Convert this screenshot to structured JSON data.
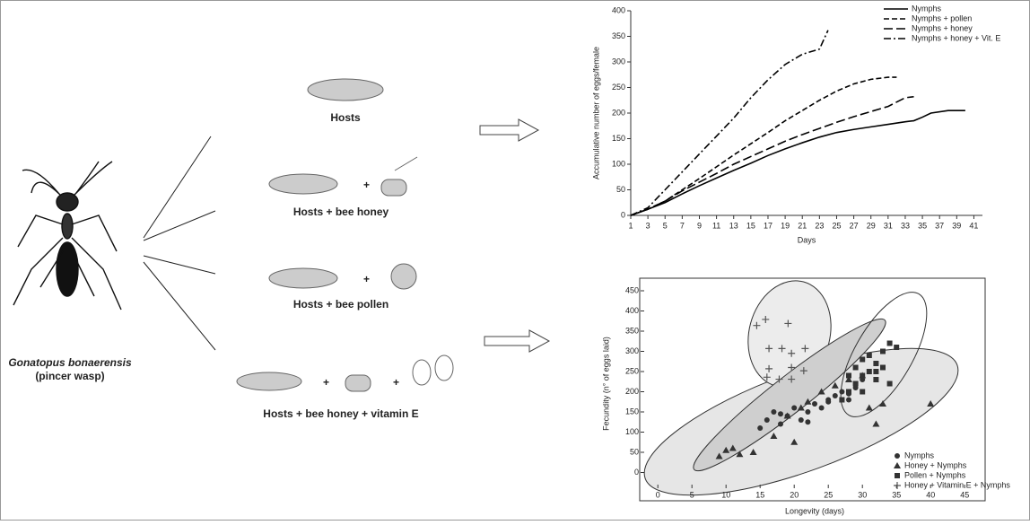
{
  "diagram": {
    "species": "Gonatopus bonaerensis",
    "common_name": "(pincer wasp)",
    "plus": "+",
    "treatments": [
      "Hosts",
      "Hosts + bee honey",
      "Hosts + bee pollen",
      "Hosts + bee honey + vitamin E"
    ]
  },
  "chart_data": [
    {
      "type": "line",
      "xlabel": "Days",
      "ylabel": "Accumulative number of eggs/female",
      "xlim": [
        1,
        42
      ],
      "xticks": [
        1,
        3,
        5,
        7,
        9,
        11,
        13,
        15,
        17,
        19,
        21,
        23,
        25,
        27,
        29,
        31,
        33,
        35,
        37,
        39,
        41
      ],
      "ylim": [
        0,
        400
      ],
      "yticks": [
        0,
        50,
        100,
        150,
        200,
        250,
        300,
        350,
        400
      ],
      "legend": "upper right",
      "series": [
        {
          "name": "Nymphs",
          "color": "#000000",
          "style": "solid",
          "x": [
            1,
            3,
            5,
            7,
            9,
            11,
            13,
            15,
            17,
            19,
            21,
            23,
            25,
            27,
            29,
            31,
            33,
            34,
            35,
            36,
            38,
            40
          ],
          "values": [
            0,
            12,
            25,
            42,
            58,
            73,
            88,
            102,
            117,
            130,
            142,
            153,
            162,
            168,
            173,
            178,
            183,
            185,
            192,
            200,
            205,
            205
          ]
        },
        {
          "name": "Nymphs + pollen",
          "color": "#000000",
          "style": "dashed",
          "x": [
            1,
            3,
            5,
            7,
            9,
            11,
            13,
            15,
            17,
            19,
            21,
            23,
            25,
            27,
            29,
            31,
            32
          ],
          "values": [
            0,
            12,
            28,
            50,
            72,
            95,
            118,
            140,
            162,
            185,
            205,
            225,
            243,
            257,
            266,
            270,
            270
          ]
        },
        {
          "name": "Nymphs + honey",
          "color": "#000000",
          "style": "longdash",
          "x": [
            1,
            3,
            5,
            7,
            9,
            11,
            13,
            15,
            17,
            19,
            21,
            23,
            25,
            27,
            29,
            31,
            33,
            34
          ],
          "values": [
            0,
            12,
            28,
            48,
            65,
            82,
            100,
            115,
            130,
            145,
            158,
            170,
            182,
            193,
            203,
            213,
            230,
            232
          ]
        },
        {
          "name": "Nymphs + honey + Vit. E",
          "color": "#000000",
          "style": "dashdot",
          "x": [
            1,
            3,
            5,
            7,
            9,
            11,
            13,
            15,
            17,
            19,
            21,
            23,
            24
          ],
          "values": [
            0,
            15,
            50,
            85,
            120,
            155,
            190,
            230,
            265,
            295,
            315,
            325,
            362
          ]
        }
      ]
    },
    {
      "type": "scatter",
      "xlabel": "Longevity (days)",
      "ylabel": "Fecundity (n° of eggs laid)",
      "xlim": [
        -2,
        48
      ],
      "xticks": [
        0,
        5,
        10,
        15,
        20,
        25,
        30,
        35,
        40,
        45
      ],
      "ylim": [
        -30,
        470
      ],
      "yticks": [
        0,
        50,
        100,
        150,
        200,
        250,
        300,
        350,
        400,
        450
      ],
      "legend": "lower right",
      "series": [
        {
          "name": "Nymphs",
          "color": "#333333",
          "marker": "circle",
          "x": [
            15,
            16,
            17,
            18,
            19,
            20,
            21,
            22,
            23,
            24,
            25,
            26,
            27,
            28,
            29,
            30,
            18,
            22,
            25,
            28
          ],
          "values": [
            110,
            130,
            150,
            120,
            140,
            160,
            130,
            150,
            170,
            160,
            180,
            190,
            200,
            180,
            210,
            230,
            145,
            125,
            175,
            195
          ]
        },
        {
          "name": "Honey + Nymphs",
          "color": "#333333",
          "marker": "triangle",
          "x": [
            9,
            10,
            11,
            12,
            17,
            19,
            21,
            22,
            24,
            26,
            28,
            30,
            31,
            32,
            33,
            40,
            20,
            14
          ],
          "values": [
            40,
            55,
            60,
            45,
            90,
            140,
            160,
            175,
            200,
            215,
            230,
            240,
            160,
            120,
            170,
            170,
            75,
            50
          ]
        },
        {
          "name": "Pollen + Nymphs",
          "color": "#333333",
          "marker": "square",
          "x": [
            27,
            28,
            29,
            29,
            30,
            30,
            31,
            31,
            32,
            32,
            33,
            33,
            34,
            34,
            35,
            28,
            30,
            32
          ],
          "values": [
            180,
            200,
            220,
            260,
            240,
            280,
            250,
            290,
            230,
            270,
            260,
            300,
            220,
            320,
            310,
            240,
            200,
            250
          ]
        },
        {
          "name": "Honey + Vitamin E + Nymphs",
          "color": "#555555",
          "marker": "plus",
          "x": [
            14.5,
            15.8,
            18.2,
            19.1,
            16.3,
            19.6,
            16.3,
            19.6,
            21.4,
            17.8,
            21.6,
            19.6,
            16
          ],
          "values": [
            364,
            379,
            307,
            369,
            307,
            295,
            257,
            260,
            252,
            231,
            307,
            231,
            236
          ]
        }
      ]
    }
  ]
}
